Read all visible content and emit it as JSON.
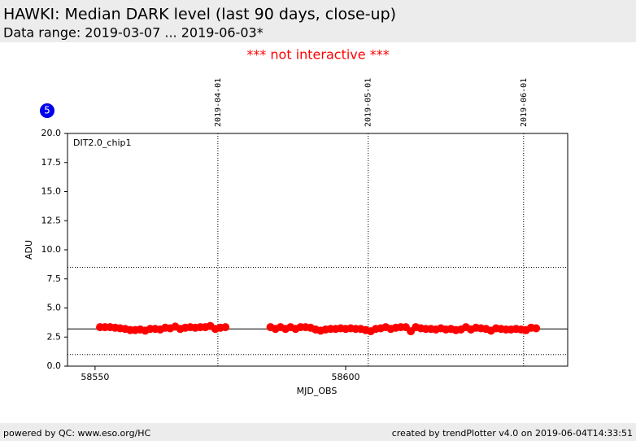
{
  "header": {
    "title": "HAWKI: Median DARK level (last 90 days, close-up)",
    "subtitle": "Data range: 2019-03-07 ... 2019-06-03*"
  },
  "notice": "*** not interactive ***",
  "badge": "5",
  "chart_data": {
    "type": "scatter",
    "annotation": "DIT2.0_chip1",
    "x_label": "MJD_OBS",
    "y_label": "ADU",
    "xlim": [
      58544.5,
      58644.3
    ],
    "ylim": [
      0,
      20
    ],
    "xticks": [
      58550,
      58600
    ],
    "yticks": [
      {
        "value": 0,
        "label": "0.0"
      },
      {
        "value": 2.5,
        "label": "2.5"
      },
      {
        "value": 5,
        "label": "5.0"
      },
      {
        "value": 7.5,
        "label": "7.5"
      },
      {
        "value": 10,
        "label": "10.0"
      },
      {
        "value": 12.5,
        "label": "12.5"
      },
      {
        "value": 15,
        "label": "15.0"
      },
      {
        "value": 17.5,
        "label": "17.5"
      },
      {
        "value": 20,
        "label": "20.0"
      }
    ],
    "hlines": [
      {
        "value": 3.2,
        "style": "solid"
      },
      {
        "value": 8.5,
        "style": "dotted"
      },
      {
        "value": 1.0,
        "style": "dotted"
      }
    ],
    "date_markers": [
      {
        "x": 58574.5,
        "label": "2019-04-01"
      },
      {
        "x": 58604.5,
        "label": "2019-05-01"
      },
      {
        "x": 58635.5,
        "label": "2019-06-01"
      }
    ],
    "series": [
      {
        "color": "#ff0000",
        "x": [
          58551,
          58552,
          58553,
          58554,
          58555,
          58556,
          58557,
          58558,
          58559,
          58560,
          58561,
          58562,
          58563,
          58564,
          58565,
          58566,
          58567,
          58568,
          58569,
          58570,
          58571,
          58572,
          58573,
          58574,
          58575,
          58576,
          58585,
          58586,
          58587,
          58588,
          58589,
          58590,
          58591,
          58592,
          58593,
          58594,
          58595,
          58596,
          58597,
          58598,
          58599,
          58600,
          58601,
          58602,
          58603,
          58604,
          58605,
          58606,
          58607,
          58608,
          58609,
          58610,
          58611,
          58612,
          58613,
          58614,
          58615,
          58616,
          58617,
          58618,
          58619,
          58620,
          58621,
          58622,
          58623,
          58624,
          58625,
          58626,
          58627,
          58628,
          58629,
          58630,
          58631,
          58632,
          58633,
          58634,
          58635,
          58636,
          58637,
          58638
        ],
        "values": [
          3.35,
          3.35,
          3.35,
          3.3,
          3.25,
          3.2,
          3.1,
          3.1,
          3.15,
          3.05,
          3.2,
          3.2,
          3.15,
          3.3,
          3.25,
          3.4,
          3.2,
          3.3,
          3.35,
          3.3,
          3.35,
          3.35,
          3.45,
          3.2,
          3.3,
          3.35,
          3.35,
          3.2,
          3.35,
          3.2,
          3.35,
          3.2,
          3.35,
          3.35,
          3.3,
          3.15,
          3.05,
          3.15,
          3.2,
          3.2,
          3.25,
          3.2,
          3.25,
          3.2,
          3.2,
          3.1,
          3.0,
          3.2,
          3.25,
          3.35,
          3.2,
          3.3,
          3.35,
          3.35,
          3.0,
          3.35,
          3.25,
          3.2,
          3.2,
          3.15,
          3.25,
          3.15,
          3.2,
          3.1,
          3.15,
          3.35,
          3.15,
          3.3,
          3.25,
          3.2,
          3.05,
          3.25,
          3.2,
          3.15,
          3.15,
          3.2,
          3.15,
          3.1,
          3.3,
          3.25
        ]
      }
    ]
  },
  "footer": {
    "left": "powered by QC: www.eso.org/HC",
    "right": "created by trendPlotter v4.0 on 2019-06-04T14:33:51"
  }
}
